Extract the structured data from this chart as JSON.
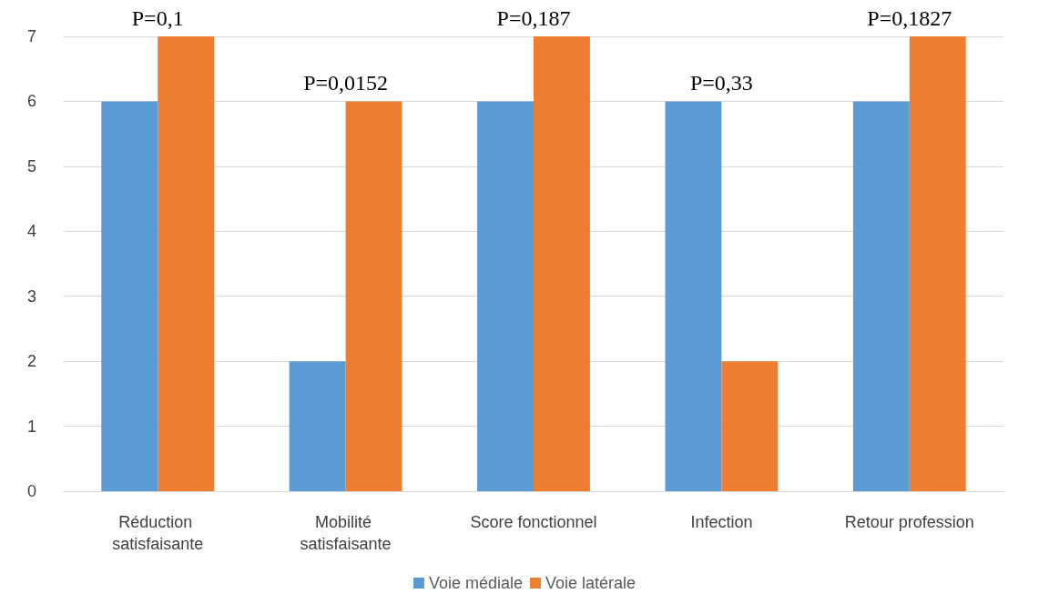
{
  "chart_data": {
    "type": "bar",
    "categories": [
      "Réduction satisfaisante",
      "Mobilité satisfaisante",
      "Score fonctionnel",
      "Infection",
      "Retour profession"
    ],
    "series": [
      {
        "name": "Voie médiale",
        "color": "#5b9bd5",
        "values": [
          6,
          2,
          6,
          6,
          6
        ]
      },
      {
        "name": "Voie latérale",
        "color": "#ed7d31",
        "values": [
          7,
          6,
          7,
          2,
          7
        ]
      }
    ],
    "ylim": [
      0,
      7
    ],
    "yticks": [
      0,
      1,
      2,
      3,
      4,
      5,
      6,
      7
    ],
    "grid": "y",
    "legend": "bottom",
    "annotations": [
      "P=0,1",
      "P=0,0152",
      "P=0,187",
      "P=0,33",
      "P=0,1827"
    ]
  }
}
